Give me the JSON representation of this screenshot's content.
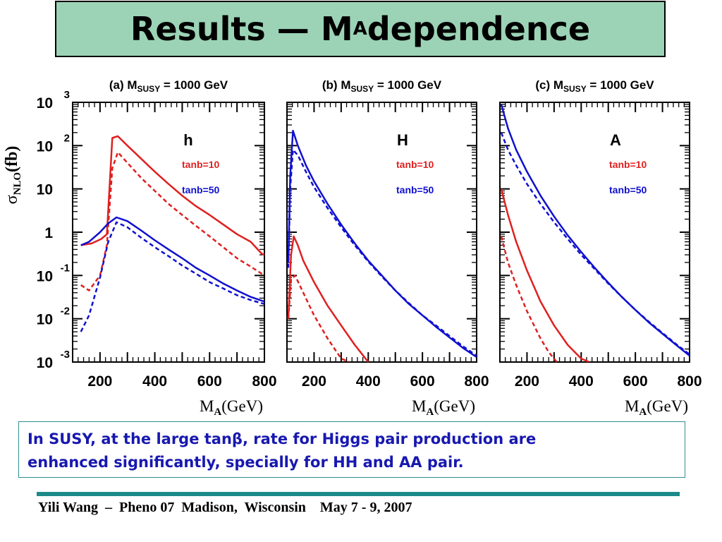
{
  "header": {
    "title_main": "Results  — M",
    "title_sub": "A",
    "title_rest": " dependence"
  },
  "chart_data": [
    {
      "type": "line",
      "panel_label": "(a) M",
      "panel_label_sub": "SUSY",
      "panel_label_rest": " = 1000 GeV",
      "higgs": "h",
      "xlim": [
        100,
        800
      ],
      "ylim": [
        0.001,
        1000
      ],
      "yscale": "log",
      "xticks": [
        200,
        400,
        600,
        800
      ],
      "xlabel": "M",
      "xlabel_sub": "A",
      "xlabel_rest": "(GeV)",
      "legend": [
        "tanb=10",
        "tanb=50"
      ],
      "series": [
        {
          "name": "tanb=10",
          "style": "solid",
          "color": "#e02020",
          "x": [
            130,
            170,
            205,
            225,
            245,
            265,
            300,
            350,
            400,
            450,
            500,
            550,
            600,
            650,
            700,
            750,
            790,
            800
          ],
          "y": [
            0.5,
            0.55,
            0.7,
            0.9,
            150,
            165,
            100,
            50,
            25,
            13,
            7,
            4,
            2.5,
            1.5,
            0.9,
            0.6,
            0.32,
            0.3
          ]
        },
        {
          "name": "tanb=10",
          "style": "dashed",
          "color": "#e02020",
          "x": [
            130,
            160,
            200,
            225,
            245,
            265,
            300,
            350,
            400,
            450,
            500,
            550,
            600,
            650,
            700,
            750,
            800
          ],
          "y": [
            0.06,
            0.045,
            0.1,
            0.5,
            30,
            70,
            40,
            18,
            9,
            4.5,
            2.5,
            1.4,
            0.8,
            0.45,
            0.25,
            0.16,
            0.1
          ]
        },
        {
          "name": "tanb=50",
          "style": "solid",
          "color": "#1010d0",
          "x": [
            130,
            160,
            200,
            230,
            260,
            300,
            350,
            400,
            450,
            500,
            550,
            600,
            650,
            700,
            750,
            800
          ],
          "y": [
            0.5,
            0.6,
            1.0,
            1.6,
            2.2,
            1.8,
            1.1,
            0.65,
            0.4,
            0.25,
            0.15,
            0.1,
            0.065,
            0.045,
            0.032,
            0.025
          ]
        },
        {
          "name": "tanb=50",
          "style": "dashed",
          "color": "#1010d0",
          "x": [
            130,
            160,
            200,
            230,
            260,
            300,
            350,
            400,
            450,
            500,
            550,
            600,
            650,
            700,
            750,
            800
          ],
          "y": [
            0.005,
            0.012,
            0.09,
            0.6,
            1.7,
            1.3,
            0.75,
            0.45,
            0.28,
            0.17,
            0.11,
            0.07,
            0.05,
            0.035,
            0.027,
            0.022
          ]
        }
      ]
    },
    {
      "type": "line",
      "panel_label": "(b) M",
      "panel_label_sub": "SUSY",
      "panel_label_rest": " = 1000 GeV",
      "higgs": "H",
      "xlim": [
        100,
        800
      ],
      "ylim": [
        0.001,
        1000
      ],
      "yscale": "log",
      "xticks": [
        200,
        400,
        600,
        800
      ],
      "xlabel": "M",
      "xlabel_sub": "A",
      "xlabel_rest": "(GeV)",
      "legend": [
        "tanb=10",
        "tanb=50"
      ],
      "series": [
        {
          "name": "tanb=10",
          "style": "solid",
          "color": "#e02020",
          "x": [
            105,
            115,
            125,
            140,
            160,
            200,
            250,
            300,
            350,
            400
          ],
          "y": [
            0.01,
            0.3,
            0.8,
            0.5,
            0.22,
            0.07,
            0.02,
            0.007,
            0.0025,
            0.001
          ]
        },
        {
          "name": "tanb=10",
          "style": "dashed",
          "color": "#e02020",
          "x": [
            105,
            115,
            130,
            160,
            200,
            250,
            300,
            330
          ],
          "y": [
            0.01,
            0.08,
            0.1,
            0.04,
            0.012,
            0.0035,
            0.0012,
            0.001
          ]
        },
        {
          "name": "tanb=50",
          "style": "solid",
          "color": "#1010d0",
          "x": [
            105,
            112,
            122,
            140,
            170,
            200,
            250,
            300,
            350,
            400,
            450,
            500,
            550,
            600,
            650,
            700,
            750,
            800
          ],
          "y": [
            0.2,
            20,
            220,
            100,
            35,
            15,
            4.5,
            1.5,
            0.55,
            0.22,
            0.1,
            0.045,
            0.022,
            0.012,
            0.0065,
            0.0037,
            0.0021,
            0.0013
          ]
        },
        {
          "name": "tanb=50",
          "style": "dashed",
          "color": "#1010d0",
          "x": [
            105,
            112,
            122,
            140,
            170,
            200,
            250,
            300,
            350,
            400,
            450,
            500,
            550,
            600,
            650,
            700,
            750,
            800
          ],
          "y": [
            0.15,
            10,
            80,
            60,
            25,
            11,
            3.6,
            1.3,
            0.5,
            0.21,
            0.095,
            0.045,
            0.023,
            0.012,
            0.007,
            0.004,
            0.0023,
            0.0014
          ]
        }
      ]
    },
    {
      "type": "line",
      "panel_label": "(c) M",
      "panel_label_sub": "SUSY",
      "panel_label_rest": " = 1000 GeV",
      "higgs": "A",
      "xlim": [
        100,
        800
      ],
      "ylim": [
        0.001,
        1000
      ],
      "yscale": "log",
      "xticks": [
        200,
        400,
        600,
        800
      ],
      "xlabel": "M",
      "xlabel_sub": "A",
      "xlabel_rest": "(GeV)",
      "legend": [
        "tanb=10",
        "tanb=50"
      ],
      "series": [
        {
          "name": "tanb=10",
          "style": "solid",
          "color": "#e02020",
          "x": [
            105,
            130,
            160,
            200,
            250,
            300,
            350,
            400,
            430
          ],
          "y": [
            10,
            2.5,
            0.6,
            0.13,
            0.025,
            0.007,
            0.0025,
            0.0012,
            0.001
          ]
        },
        {
          "name": "tanb=10",
          "style": "dashed",
          "color": "#e02020",
          "x": [
            105,
            130,
            160,
            200,
            250,
            280,
            310
          ],
          "y": [
            0.8,
            0.2,
            0.06,
            0.015,
            0.0035,
            0.0017,
            0.001
          ]
        },
        {
          "name": "tanb=50",
          "style": "solid",
          "color": "#1010d0",
          "x": [
            105,
            130,
            160,
            200,
            250,
            300,
            350,
            400,
            450,
            500,
            550,
            600,
            650,
            700,
            750,
            800
          ],
          "y": [
            900,
            250,
            80,
            25,
            7,
            2.3,
            0.85,
            0.35,
            0.15,
            0.068,
            0.032,
            0.016,
            0.0082,
            0.0045,
            0.0025,
            0.0014
          ]
        },
        {
          "name": "tanb=50",
          "style": "dashed",
          "color": "#1010d0",
          "x": [
            105,
            130,
            160,
            200,
            250,
            300,
            350,
            400,
            450,
            500,
            550,
            600,
            650,
            700,
            750,
            800
          ],
          "y": [
            200,
            80,
            35,
            13,
            4.5,
            1.7,
            0.7,
            0.3,
            0.14,
            0.065,
            0.032,
            0.016,
            0.0085,
            0.0047,
            0.0026,
            0.0015
          ]
        }
      ]
    }
  ],
  "yaxis": {
    "label_main": "σ",
    "label_sub": "NLO",
    "label_rest": "(fb)",
    "ticks": [
      {
        "base": "10",
        "exp": "3"
      },
      {
        "base": "10",
        "exp": "2"
      },
      {
        "base": "10",
        "exp": ""
      },
      {
        "base": "1",
        "exp": ""
      },
      {
        "base": "10",
        "exp": "-1"
      },
      {
        "base": "10",
        "exp": "-2"
      },
      {
        "base": "10",
        "exp": "-3"
      }
    ]
  },
  "note": {
    "text_before": "In SUSY, at the large tanβ,  rate for Higgs pair production are",
    "text_line2": "enhanced significantly, specially for HH and AA pair."
  },
  "footer": {
    "text": "Yili Wang  –  Pheno 07  Madison,  Wisconsin    May 7 - 9, 2007"
  },
  "colors": {
    "title_bg": "#9cd3b6",
    "red": "#e02020",
    "blue": "#1010d0",
    "note_text": "#1818b0",
    "rule": "#1d8a8a"
  }
}
